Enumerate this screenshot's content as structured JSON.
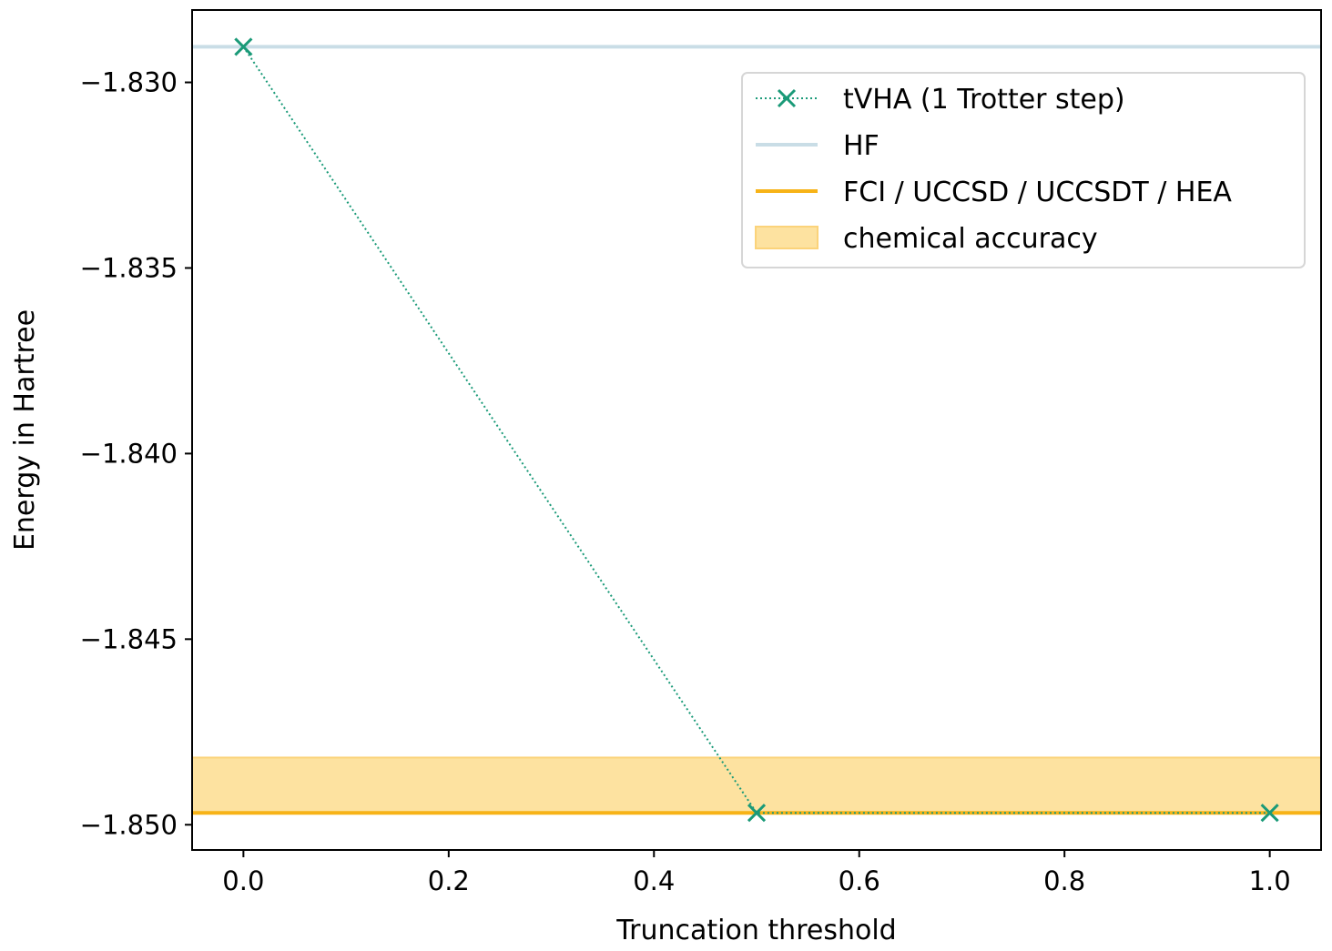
{
  "chart_data": {
    "type": "line",
    "xlabel": "Truncation threshold",
    "ylabel": "Energy in Hartree",
    "xlim": [
      -0.05,
      1.05
    ],
    "ylim": [
      -1.85068,
      -1.82805
    ],
    "xticks": [
      0.0,
      0.2,
      0.4,
      0.6,
      0.8,
      1.0
    ],
    "xtick_labels": [
      "0.0",
      "0.2",
      "0.4",
      "0.6",
      "0.8",
      "1.0"
    ],
    "yticks": [
      -1.83,
      -1.835,
      -1.84,
      -1.845,
      -1.85
    ],
    "ytick_labels": [
      "−1.830",
      "−1.835",
      "−1.840",
      "−1.845",
      "−1.850"
    ],
    "grid": false,
    "legend_position": "top-right",
    "series": [
      {
        "name": "tVHA (1 Trotter step)",
        "kind": "line-marker",
        "linestyle": "dotted",
        "marker": "x",
        "color": "#1a9a78",
        "x": [
          0.0,
          0.5,
          1.0
        ],
        "y": [
          -1.82904,
          -1.84968,
          -1.84968
        ]
      },
      {
        "name": "HF",
        "kind": "hline",
        "color": "#c9dde6",
        "y": -1.82904
      },
      {
        "name": "FCI / UCCSD / UCCSDT / HEA",
        "kind": "hline",
        "color": "#f7b317",
        "y": -1.84968
      },
      {
        "name": "chemical accuracy",
        "kind": "band",
        "color": "#fde2a0",
        "edge_color": "#fbd37a",
        "y_range": [
          -1.84968,
          -1.84819
        ]
      }
    ]
  }
}
